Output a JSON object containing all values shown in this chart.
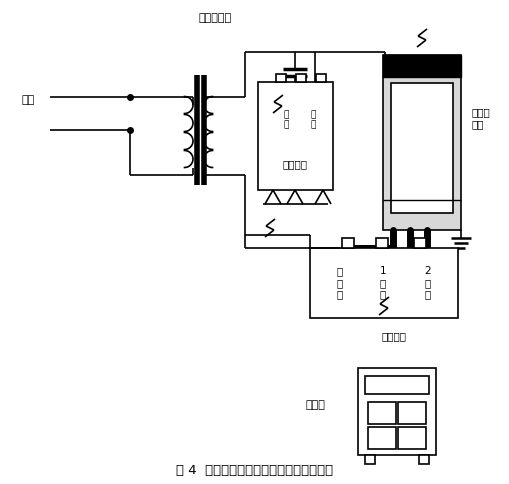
{
  "title": "图 4  反接法测量绝缘介质损耗因数接线图",
  "bg_color": "#ffffff",
  "line_color": "#000000",
  "thick_lw": 5,
  "thin_lw": 1.2,
  "gray_fill": "#cccccc",
  "label_transformer": "升压变压器",
  "label_input": "输入",
  "label_standard_cap": "标准电容",
  "label_shield": "屏蔽环\n高压",
  "label_measure": "测量单元",
  "label_common": "公\n共\n端",
  "label_ch1": "1\n通\n道",
  "label_ch2": "2\n通\n道",
  "label_receiver": "接收器",
  "figsize": [
    5.1,
    4.84
  ],
  "dpi": 100
}
